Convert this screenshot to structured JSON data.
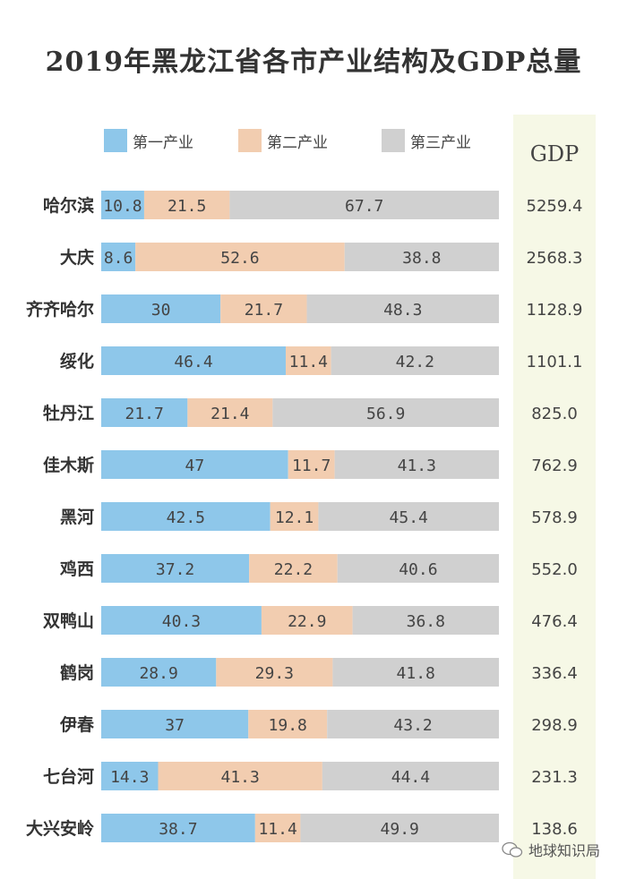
{
  "chart_data": {
    "type": "bar",
    "stacked": true,
    "orientation": "horizontal",
    "title": "2019年黑龙江省各市产业结构及GDP总量",
    "categories": [
      "哈尔滨",
      "大庆",
      "齐齐哈尔",
      "绥化",
      "牡丹江",
      "佳木斯",
      "黑河",
      "鸡西",
      "双鸭山",
      "鹤岗",
      "伊春",
      "七台河",
      "大兴安岭"
    ],
    "series": [
      {
        "name": "第一产业",
        "color": "#8ec7ea",
        "values": [
          10.8,
          8.6,
          30,
          46.4,
          21.7,
          47,
          42.5,
          37.2,
          40.3,
          28.9,
          37,
          14.3,
          38.7
        ]
      },
      {
        "name": "第二产业",
        "color": "#f2cdb0",
        "values": [
          21.5,
          52.6,
          21.7,
          11.4,
          21.4,
          11.7,
          12.1,
          22.2,
          22.9,
          29.3,
          19.8,
          41.3,
          11.4
        ]
      },
      {
        "name": "第三产业",
        "color": "#d0d0d0",
        "values": [
          67.7,
          38.8,
          48.3,
          42.2,
          56.9,
          41.3,
          45.4,
          40.6,
          36.8,
          41.8,
          43.2,
          44.4,
          49.9
        ]
      }
    ],
    "value_labels": [
      [
        "10.8",
        "21.5",
        "67.7"
      ],
      [
        "8.6",
        "52.6",
        "38.8"
      ],
      [
        "30",
        "21.7",
        "48.3"
      ],
      [
        "46.4",
        "11.4",
        "42.2"
      ],
      [
        "21.7",
        "21.4",
        "56.9"
      ],
      [
        "47",
        "11.7",
        "41.3"
      ],
      [
        "42.5",
        "12.1",
        "45.4"
      ],
      [
        "37.2",
        "22.2",
        "40.6"
      ],
      [
        "40.3",
        "22.9",
        "36.8"
      ],
      [
        "28.9",
        "29.3",
        "41.8"
      ],
      [
        "37",
        "19.8",
        "43.2"
      ],
      [
        "14.3",
        "41.3",
        "44.4"
      ],
      [
        "38.7",
        "11.4",
        "49.9"
      ]
    ],
    "gdp_header": "GDP",
    "gdp": [
      "5259.4",
      "2568.3",
      "1128.9",
      "1101.1",
      "825.0",
      "762.9",
      "578.9",
      "552.0",
      "476.4",
      "336.4",
      "298.9",
      "231.3",
      "138.6"
    ],
    "legend_placement": "top",
    "xlim": [
      0,
      100
    ],
    "grid": false
  },
  "watermark": "地球知识局"
}
